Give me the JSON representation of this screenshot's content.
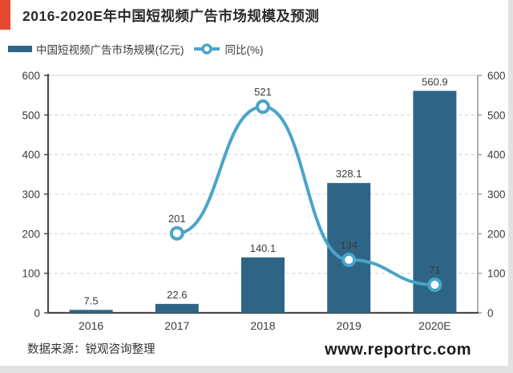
{
  "page": {
    "title": "2016-2020E年中国短视频广告市场规模及预测",
    "source_note": "数据来源：锐观咨询整理",
    "website": "www.reportrc.com"
  },
  "colors": {
    "accent_red": "#e5492f",
    "bar": "#2e6587",
    "line": "#49a5c8",
    "grid": "#dcdcdc",
    "axis_dark": "#4a4a4a",
    "axis_right": "#8a8a8a",
    "text": "#3b3b3b"
  },
  "chart_data": {
    "type": "bar",
    "title": "2016-2020E年中国短视频广告市场规模及预测",
    "categories": [
      "2016",
      "2017",
      "2018",
      "2019",
      "2020E"
    ],
    "series": [
      {
        "name": "中国短视频广告市场规模(亿元)",
        "type": "bar",
        "axis": "left",
        "values": [
          7.5,
          22.6,
          140.1,
          328.1,
          560.9
        ]
      },
      {
        "name": "同比(%)",
        "type": "line",
        "axis": "right",
        "values": [
          null,
          201,
          521,
          134,
          71
        ]
      }
    ],
    "xlabel": "",
    "ylabel": "",
    "ylim": [
      0,
      600
    ],
    "y2lim": [
      0,
      600
    ],
    "yticks": [
      0,
      100,
      200,
      300,
      400,
      500,
      600
    ],
    "grid": "horizontal-dashed",
    "legend_position": "top-left",
    "data_labels": true
  }
}
